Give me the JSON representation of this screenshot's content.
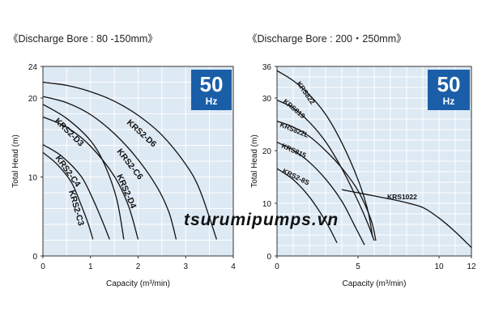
{
  "watermark": "tsurumipumps.vn",
  "colors": {
    "plot_bg": "#dde9f3",
    "grid": "#ffffff",
    "curve": "#111111",
    "badge": "#1a5ea8"
  },
  "chart_data": [
    {
      "type": "line",
      "title": "《Discharge Bore : 80 -150mm》",
      "xlabel": "Capacity (m³/min)",
      "ylabel": "Total Head (m)",
      "xlim": [
        0,
        4
      ],
      "ylim": [
        0,
        24
      ],
      "xticks": [
        "0",
        "1",
        "2",
        "3",
        "4"
      ],
      "yticks": [
        "0",
        "10",
        "20",
        "24"
      ],
      "grid": true,
      "badge": {
        "value": "50",
        "unit": "Hz"
      },
      "series": [
        {
          "name": "KRS2-D6",
          "x": [
            0,
            0.5,
            1.0,
            1.5,
            2.0,
            2.5,
            3.0,
            3.3,
            3.65
          ],
          "y": [
            22,
            21.6,
            20.8,
            19.6,
            17.8,
            15.3,
            11.6,
            8.3,
            2.1
          ]
        },
        {
          "name": "KRS2-C6",
          "x": [
            0,
            0.5,
            1.0,
            1.5,
            2.0,
            2.4,
            2.65,
            2.8
          ],
          "y": [
            20.2,
            19.4,
            17.9,
            15.5,
            12.2,
            8.7,
            5.5,
            2.1
          ]
        },
        {
          "name": "KRS2-D3",
          "x": [
            0,
            0.5,
            1.0,
            1.3,
            1.55,
            1.7
          ],
          "y": [
            19.2,
            17.4,
            14.6,
            11.5,
            7.2,
            2.1
          ]
        },
        {
          "name": "KRS2-D4",
          "x": [
            0,
            0.5,
            1.0,
            1.5,
            1.8,
            2.0
          ],
          "y": [
            17.6,
            16.3,
            13.9,
            10.1,
            6.3,
            2.1
          ]
        },
        {
          "name": "KRS2-C4",
          "x": [
            0,
            0.4,
            0.8,
            1.05,
            1.25,
            1.4
          ],
          "y": [
            14.1,
            12.6,
            10.1,
            7.2,
            4.4,
            2.1
          ]
        },
        {
          "name": "KRS2-C3",
          "x": [
            0,
            0.3,
            0.6,
            0.8,
            0.95,
            1.05
          ],
          "y": [
            13.1,
            11.6,
            9.3,
            6.5,
            4.1,
            2.1
          ]
        }
      ]
    },
    {
      "type": "line",
      "title": "《Discharge Bore : 200・250mm》",
      "xlabel": "Capacity (m³/min)",
      "ylabel": "Total Head (m)",
      "xlim": [
        0,
        12
      ],
      "ylim": [
        0,
        36
      ],
      "xticks": [
        "0",
        "5",
        "10",
        "12"
      ],
      "yticks": [
        "0",
        "10",
        "20",
        "30",
        "36"
      ],
      "grid": true,
      "badge": {
        "value": "50",
        "unit": "Hz"
      },
      "series": [
        {
          "name": "KRS822",
          "x": [
            0,
            1,
            2,
            3,
            4,
            5,
            5.6,
            5.9
          ],
          "y": [
            35.2,
            33.3,
            30.6,
            26.9,
            21.5,
            14.5,
            8.7,
            3.6
          ]
        },
        {
          "name": "KRS819",
          "x": [
            0,
            1,
            2,
            3,
            4,
            5,
            5.6,
            6.0
          ],
          "y": [
            29.6,
            28.1,
            25.4,
            21.7,
            16.6,
            10.4,
            6.2,
            2.9
          ]
        },
        {
          "name": "KRS822L",
          "x": [
            0,
            1,
            2,
            3,
            4,
            5,
            5.8,
            6.1
          ],
          "y": [
            25.6,
            24.5,
            22.7,
            20.0,
            16.7,
            12.4,
            6.9,
            2.9
          ]
        },
        {
          "name": "KRS815",
          "x": [
            0,
            1,
            2,
            3,
            4,
            4.8,
            5.4
          ],
          "y": [
            21.6,
            20.1,
            17.8,
            14.6,
            10.4,
            5.7,
            2.1
          ]
        },
        {
          "name": "KRS2-8S",
          "x": [
            0,
            1,
            2,
            3,
            3.7
          ],
          "y": [
            16.6,
            14.5,
            11.2,
            6.6,
            2.5
          ]
        },
        {
          "name": "KRS1022",
          "x": [
            4,
            5,
            6,
            7,
            8,
            9,
            10,
            11,
            12
          ],
          "y": [
            12.6,
            12.0,
            11.4,
            10.8,
            10.1,
            9.2,
            7.2,
            4.6,
            1.6
          ]
        }
      ]
    }
  ]
}
